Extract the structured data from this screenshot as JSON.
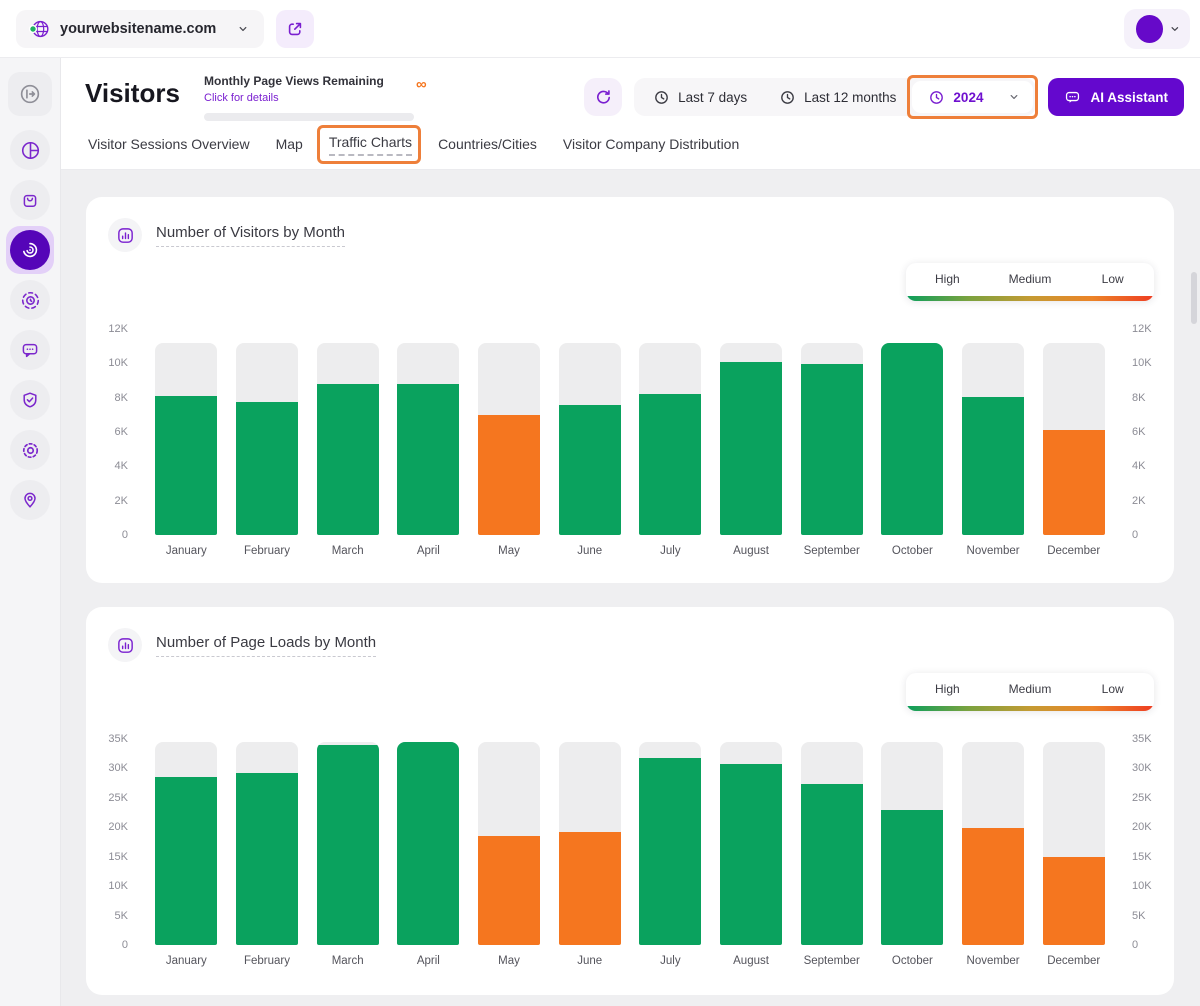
{
  "topbar": {
    "website_selector": {
      "label": "yourwebsitename.com"
    }
  },
  "sidebar": {
    "items": [
      "collapse-sidebar",
      "analytics-dashboard",
      "ecommerce-bag",
      "visitors-statistics-active",
      "session-recordings",
      "feedback-chat",
      "privacy-shield",
      "settings-gear",
      "location-pin"
    ]
  },
  "header": {
    "title": "Visitors",
    "page_views": {
      "title": "Monthly Page Views Remaining",
      "link": "Click for details",
      "value": "∞"
    },
    "date_filters": [
      {
        "label": "Last 7 days",
        "selected": false
      },
      {
        "label": "Last 12 months",
        "selected": false
      },
      {
        "label": "2024",
        "selected": true,
        "annotated": true
      }
    ],
    "ai_assistant": {
      "label": "AI Assistant"
    }
  },
  "tabs": [
    {
      "label": "Visitor Sessions Overview",
      "active": false
    },
    {
      "label": "Map",
      "active": false
    },
    {
      "label": "Traffic Charts",
      "active": true,
      "annotated": true
    },
    {
      "label": "Countries/Cities",
      "active": false
    },
    {
      "label": "Visitor Company Distribution",
      "active": false
    }
  ],
  "colors": {
    "high": "#0aa25e",
    "low": "#f5761f",
    "track": "#ededee",
    "accent_purple": "#7a1fd0",
    "deep_purple": "#6408ce",
    "annotation_orange": "#ee7f3a",
    "legend_gradient": [
      "#0b9f5c",
      "#7aa23f",
      "#c49b33",
      "#ec8428",
      "#ee3d22"
    ]
  },
  "chart_data": [
    {
      "type": "bar",
      "title": "Number of Visitors by Month",
      "categories": [
        "January",
        "February",
        "March",
        "April",
        "May",
        "June",
        "July",
        "August",
        "September",
        "October",
        "November",
        "December"
      ],
      "values": [
        8100,
        7750,
        8800,
        8800,
        7000,
        7600,
        8200,
        10100,
        9950,
        11200,
        8050,
        6100
      ],
      "bar_levels": [
        "high",
        "high",
        "high",
        "high",
        "low",
        "high",
        "high",
        "high",
        "high",
        "high",
        "high",
        "low"
      ],
      "track_value": 11200,
      "ylim": [
        0,
        12000
      ],
      "yticks": [
        {
          "value": 0,
          "label": "0"
        },
        {
          "value": 2000,
          "label": "2K"
        },
        {
          "value": 4000,
          "label": "4K"
        },
        {
          "value": 6000,
          "label": "6K"
        },
        {
          "value": 8000,
          "label": "8K"
        },
        {
          "value": 10000,
          "label": "10K"
        },
        {
          "value": 12000,
          "label": "12K"
        }
      ],
      "legend": [
        "High",
        "Medium",
        "Low"
      ],
      "legend_position": "top-right",
      "grid": false
    },
    {
      "type": "bar",
      "title": "Number of Page Loads by Month",
      "categories": [
        "January",
        "February",
        "March",
        "April",
        "May",
        "June",
        "July",
        "August",
        "September",
        "October",
        "November",
        "December"
      ],
      "values": [
        28500,
        29300,
        34000,
        34500,
        18600,
        19200,
        31800,
        30800,
        27400,
        23000,
        19900,
        14900
      ],
      "bar_levels": [
        "high",
        "high",
        "high",
        "high",
        "low",
        "low",
        "high",
        "high",
        "high",
        "high",
        "low",
        "low"
      ],
      "track_value": 34500,
      "ylim": [
        0,
        35000
      ],
      "yticks": [
        {
          "value": 0,
          "label": "0"
        },
        {
          "value": 5000,
          "label": "5K"
        },
        {
          "value": 10000,
          "label": "10K"
        },
        {
          "value": 15000,
          "label": "15K"
        },
        {
          "value": 20000,
          "label": "20K"
        },
        {
          "value": 25000,
          "label": "25K"
        },
        {
          "value": 30000,
          "label": "30K"
        },
        {
          "value": 35000,
          "label": "35K"
        }
      ],
      "legend": [
        "High",
        "Medium",
        "Low"
      ],
      "legend_position": "top-right",
      "grid": false
    }
  ]
}
